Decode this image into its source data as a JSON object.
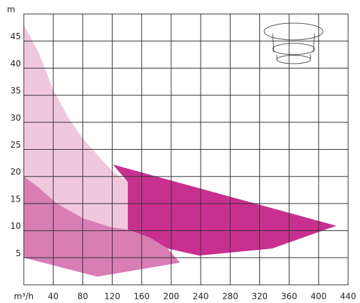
{
  "chart_data": {
    "type": "polygon",
    "x_label": "m³/h",
    "y_label": "m",
    "xlim": [
      0,
      440
    ],
    "ylim": [
      0,
      50
    ],
    "xticks": [
      40,
      80,
      120,
      160,
      200,
      240,
      280,
      320,
      360,
      400,
      440
    ],
    "yticks": [
      5,
      10,
      15,
      20,
      25,
      30,
      35,
      40,
      45
    ],
    "grid": true,
    "series": [
      {
        "color": "#c8308f",
        "x": [
          121,
          424,
          337,
          238,
          195,
          171,
          141,
          141
        ],
        "y": [
          22.2,
          10.9,
          6.7,
          5.4,
          6.7,
          8.7,
          10.2,
          19
        ]
      },
      {
        "color": "#f0c8dd",
        "x": [
          0,
          20,
          40,
          60,
          80,
          120,
          141,
          141,
          120,
          80,
          44,
          20,
          0
        ],
        "y": [
          48,
          43,
          36,
          31,
          27,
          21,
          19,
          10.2,
          10.6,
          12.3,
          15.1,
          18,
          20
        ]
      },
      {
        "color": "#d97db5",
        "x": [
          0,
          20,
          44,
          80,
          120,
          141,
          171,
          195,
          212,
          100,
          0
        ],
        "y": [
          20,
          18,
          15.1,
          12.3,
          10.6,
          10.2,
          8.7,
          6.7,
          4.1,
          1.5,
          5
        ]
      }
    ]
  }
}
